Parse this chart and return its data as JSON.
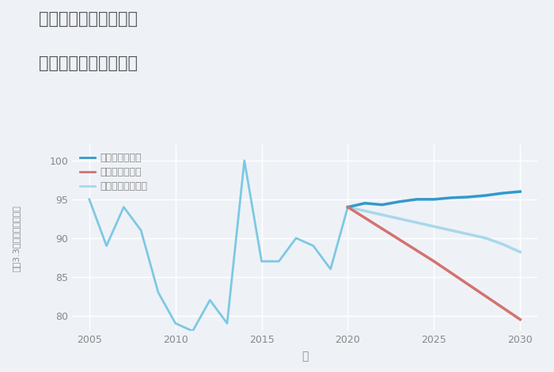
{
  "title_line1": "愛知県弥富市佐古木の",
  "title_line2": "中古戸建ての価格推移",
  "xlabel": "年",
  "ylabel_chars": [
    "坪",
    "（",
    "3",
    ".",
    "3",
    "㎡",
    "）",
    "単",
    "価",
    "（",
    "万",
    "円",
    "）"
  ],
  "ylabel": "坪（3.3㎡）単価（万円）",
  "ylim": [
    78,
    102
  ],
  "xlim": [
    2004,
    2031
  ],
  "yticks": [
    80,
    85,
    90,
    95,
    100
  ],
  "xticks": [
    2005,
    2010,
    2015,
    2020,
    2025,
    2030
  ],
  "bg_color": "#eef2f7",
  "plot_bg_color": "#eef2f7",
  "grid_color": "#ffffff",
  "historical_years": [
    2005,
    2006,
    2007,
    2008,
    2009,
    2010,
    2011,
    2012,
    2013,
    2014,
    2015,
    2016,
    2017,
    2018,
    2019,
    2020
  ],
  "historical_values": [
    95,
    89,
    94,
    91,
    83,
    79,
    78,
    82,
    79,
    100,
    87,
    87,
    90,
    89,
    86,
    94
  ],
  "good_years": [
    2020,
    2021,
    2022,
    2023,
    2024,
    2025,
    2026,
    2027,
    2028,
    2029,
    2030
  ],
  "good_values": [
    94,
    94.5,
    94.3,
    94.7,
    95.0,
    95.0,
    95.2,
    95.3,
    95.5,
    95.8,
    96.0
  ],
  "bad_years": [
    2020,
    2025,
    2030
  ],
  "bad_values": [
    94,
    87,
    79.5
  ],
  "normal_years": [
    2020,
    2021,
    2022,
    2023,
    2024,
    2025,
    2026,
    2027,
    2028,
    2029,
    2030
  ],
  "normal_values": [
    94,
    93.5,
    93.0,
    92.5,
    92.0,
    91.5,
    91.0,
    90.5,
    90.0,
    89.2,
    88.2
  ],
  "historical_color": "#7ec8e3",
  "good_color": "#3399cc",
  "bad_color": "#d4726e",
  "normal_color": "#a8d8ea",
  "legend_labels": [
    "グッドシナリオ",
    "バッドシナリオ",
    "ノーマルシナリオ"
  ],
  "title_color": "#555555",
  "axis_color": "#888888",
  "tick_color": "#888888"
}
